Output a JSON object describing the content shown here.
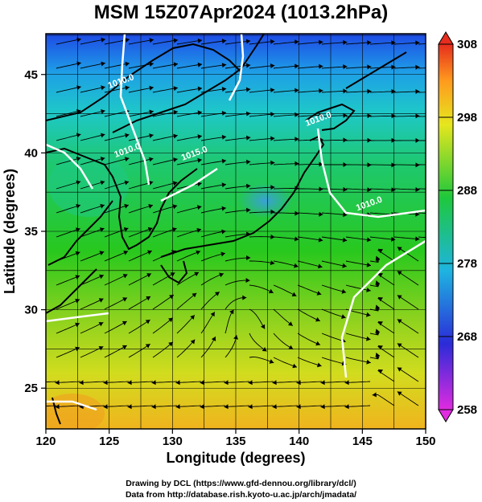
{
  "title": "MSM 15Z07Apr2024 (1013.2hPa)",
  "x_axis": {
    "label": "Longitude (degrees)",
    "ticks": [
      120,
      125,
      130,
      135,
      140,
      145,
      150
    ],
    "range": [
      120,
      150
    ]
  },
  "y_axis": {
    "label": "Latitude  (degrees)",
    "ticks": [
      25,
      30,
      35,
      40,
      45
    ],
    "range": [
      22.4,
      47.6
    ]
  },
  "colorbar": {
    "ticks": [
      258,
      268,
      278,
      288,
      298,
      308
    ],
    "range": [
      258,
      308
    ],
    "colors": [
      "#e02be0",
      "#2b2bd8",
      "#1eb4e0",
      "#1ec83c",
      "#e6e61e",
      "#ff9a1e",
      "#e62d1e"
    ]
  },
  "isobars": [
    {
      "label": "1010.0",
      "lon": 141.6,
      "lat": 42.0
    },
    {
      "label": "1015.0",
      "lon": 131.8,
      "lat": 39.8
    },
    {
      "label": "1010.0",
      "lon": 126.5,
      "lat": 40.0
    },
    {
      "label": "1010.0",
      "lon": 126.0,
      "lat": 44.4
    },
    {
      "label": "1010.0",
      "lon": 145.6,
      "lat": 36.6
    }
  ],
  "credits": {
    "line1": "Drawing by DCL (https://www.gfd-dennou.org/library/dcl/)",
    "line2": "Data from http://database.rish.kyoto-u.ac.jp/arch/jmadata/"
  }
}
